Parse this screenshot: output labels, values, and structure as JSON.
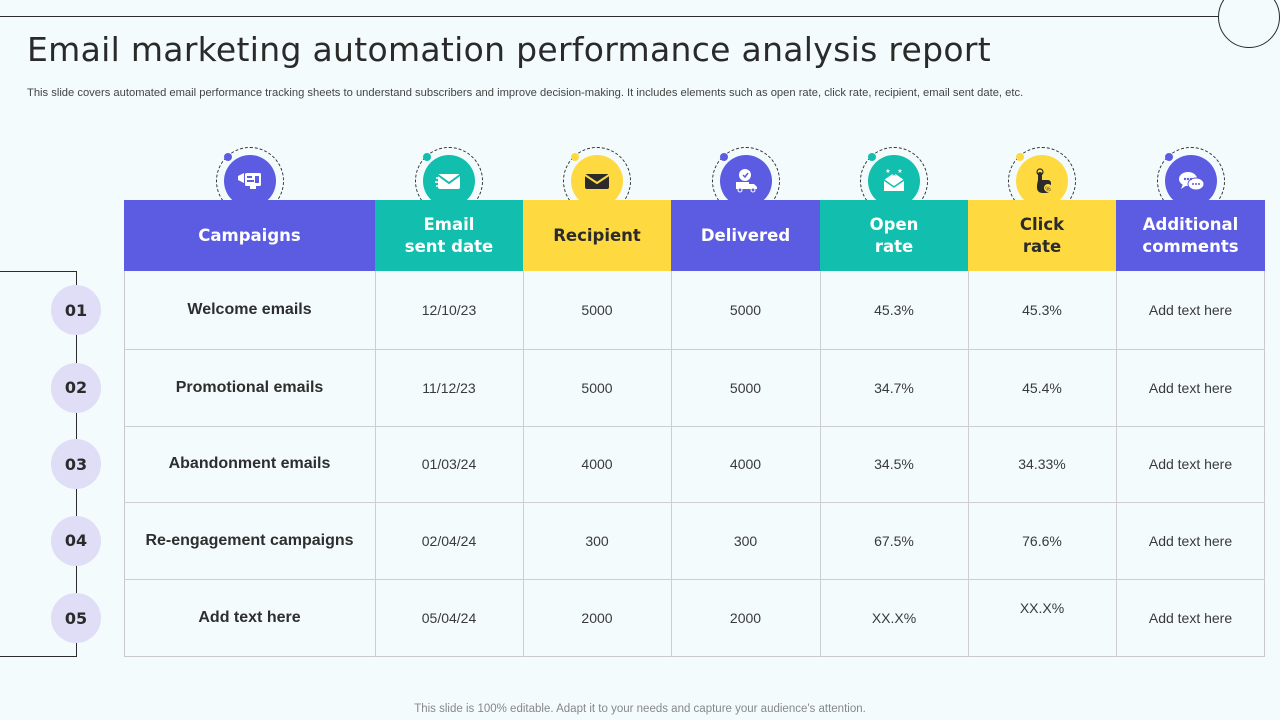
{
  "page": {
    "title": "Email marketing automation performance analysis report",
    "subtitle": "This slide covers automated email performance tracking sheets to understand subscribers and improve decision-making. It includes elements such as open rate, click rate,  recipient, email sent date, etc.",
    "footer": "This slide is 100% editable. Adapt it to your needs and capture your audience's attention."
  },
  "colors": {
    "purple": "#5b5ce2",
    "teal": "#12bfae",
    "yellow": "#ffd940",
    "number_badge": "#e0ddf7"
  },
  "table": {
    "headers": [
      {
        "label": "Campaigns",
        "color": "#5b5ce2",
        "icon": "megaphone-dashboard-icon",
        "dot": "#5b5ce2"
      },
      {
        "label": "Email\nsent date",
        "color": "#12bfae",
        "icon": "envelope-icon",
        "dot": "#12bfae"
      },
      {
        "label": "Recipient",
        "color": "#ffd940",
        "icon": "mail-envelope-icon",
        "dot": "#ffd940"
      },
      {
        "label": "Delivered",
        "color": "#5b5ce2",
        "icon": "delivery-truck-icon",
        "dot": "#5b5ce2"
      },
      {
        "label": "Open\nrate",
        "color": "#12bfae",
        "icon": "open-envelope-stars-icon",
        "dot": "#12bfae"
      },
      {
        "label": "Click\nrate",
        "color": "#ffd940",
        "icon": "hand-click-icon",
        "dot": "#ffd940"
      },
      {
        "label": "Additional\ncomments",
        "color": "#5b5ce2",
        "icon": "chat-bubbles-icon",
        "dot": "#5b5ce2"
      }
    ],
    "row_numbers": [
      "01",
      "02",
      "03",
      "04",
      "05"
    ],
    "rows": [
      [
        "Welcome emails",
        "12/10/23",
        "5000",
        "5000",
        "45.3%",
        "45.3%",
        "Add text here"
      ],
      [
        "Promotional emails",
        "11/12/23",
        "5000",
        "5000",
        "34.7%",
        "45.4%",
        "Add text here"
      ],
      [
        "Abandonment emails",
        "01/03/24",
        "4000",
        "4000",
        "34.5%",
        "34.33%",
        "Add text here"
      ],
      [
        "Re-engagement campaigns",
        "02/04/24",
        "300",
        "300",
        "67.5%",
        "76.6%",
        "Add text here"
      ],
      [
        "Add text here",
        "05/04/24",
        "2000",
        "2000",
        "XX.X%",
        "XX.X%",
        "Add text here"
      ]
    ]
  }
}
